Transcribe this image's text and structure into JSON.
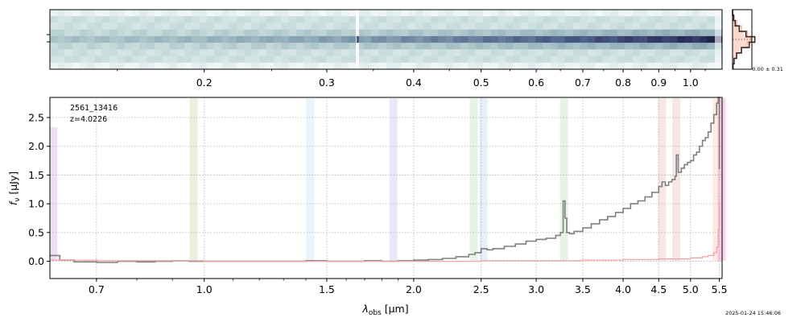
{
  "chart_data": [
    {
      "panel": "2d-spectrum",
      "type": "heatmap",
      "top_axis_ticks": [
        "0.2",
        "0.3",
        "0.4",
        "0.5",
        "0.6",
        "0.7",
        "0.8",
        "0.9",
        "1.0"
      ],
      "top_axis_tick_values": [
        0.2,
        0.3,
        0.4,
        0.5,
        0.6,
        0.7,
        0.8,
        0.9,
        1.0
      ],
      "top_axis_minor_values": [
        0.15,
        0.25,
        0.35,
        0.45,
        0.55,
        0.65,
        0.75,
        0.85,
        0.95,
        1.05
      ],
      "cmap": [
        "#ffffff",
        "#c7dcdc",
        "#8aa8b4",
        "#4a5a86",
        "#141038"
      ]
    },
    {
      "panel": "histogram",
      "type": "bar",
      "annotation": "-0.00 ± 0.31",
      "values": [
        0.0,
        0.05,
        0.12,
        0.3,
        0.6,
        1.0,
        0.75,
        0.4,
        0.18,
        0.07,
        0.02
      ],
      "gauss": [
        0.02,
        0.08,
        0.22,
        0.48,
        0.8,
        1.0,
        0.8,
        0.48,
        0.22,
        0.08,
        0.02
      ]
    },
    {
      "panel": "1d-spectrum",
      "type": "line",
      "label_id": "2561_13416",
      "label_z": "z=4.0226",
      "xlabel": "λobs [μm]",
      "xlabel_main": "λ",
      "xlabel_sub": "obs",
      "xlabel_unit": " [μm]",
      "ylabel": "fν [μJy]",
      "ylabel_main": "f",
      "ylabel_sub": "ν",
      "ylabel_unit": " [μJy]",
      "xlim": [
        0.6,
        5.55
      ],
      "ylim": [
        -0.3,
        2.85
      ],
      "x_ticks": [
        "0.7",
        "1.0",
        "1.5",
        "2.0",
        "2.5",
        "3.0",
        "3.5",
        "4.0",
        "4.5",
        "5.0",
        "5.5"
      ],
      "x_tick_values": [
        0.7,
        1.0,
        1.5,
        2.0,
        2.5,
        3.0,
        3.5,
        4.0,
        4.5,
        5.0,
        5.5
      ],
      "x_minor_values": [
        0.8,
        0.9,
        1.1,
        1.2,
        1.3,
        1.4,
        1.6,
        1.7,
        1.8,
        1.9
      ],
      "y_ticks": [
        "0.0",
        "0.5",
        "1.0",
        "1.5",
        "2.0",
        "2.5"
      ],
      "y_tick_values": [
        0.0,
        0.5,
        1.0,
        1.5,
        2.0,
        2.5
      ],
      "grid": true,
      "line_bands": [
        {
          "x": 0.607,
          "color": "#e8c8f0"
        },
        {
          "x": 0.965,
          "color": "#dde6c4"
        },
        {
          "x": 1.42,
          "color": "#d8ecf8"
        },
        {
          "x": 1.87,
          "color": "#d8d8f4"
        },
        {
          "x": 2.44,
          "color": "#d6ecd4"
        },
        {
          "x": 2.52,
          "color": "#d6e6f6"
        },
        {
          "x": 3.29,
          "color": "#d6ecd4"
        },
        {
          "x": 4.55,
          "color": "#f2d6d6"
        },
        {
          "x": 4.77,
          "color": "#f2d6d6"
        },
        {
          "x": 5.45,
          "color": "#fde0cc"
        },
        {
          "x": 5.54,
          "color": "#f4b8e0"
        }
      ],
      "series": [
        {
          "color": "#808080",
          "x": [
            0.6,
            0.62,
            0.65,
            0.7,
            0.75,
            0.8,
            0.85,
            0.9,
            0.95,
            1.0,
            1.1,
            1.2,
            1.3,
            1.4,
            1.5,
            1.6,
            1.7,
            1.8,
            1.9,
            2.0,
            2.1,
            2.2,
            2.3,
            2.4,
            2.45,
            2.5,
            2.55,
            2.6,
            2.7,
            2.8,
            2.9,
            3.0,
            3.1,
            3.2,
            3.25,
            3.28,
            3.3,
            3.32,
            3.35,
            3.4,
            3.5,
            3.6,
            3.7,
            3.8,
            3.9,
            4.0,
            4.1,
            4.2,
            4.3,
            4.4,
            4.5,
            4.55,
            4.6,
            4.65,
            4.7,
            4.75,
            4.77,
            4.8,
            4.85,
            4.9,
            4.95,
            5.0,
            5.05,
            5.1,
            5.15,
            5.2,
            5.25,
            5.3,
            5.35,
            5.4,
            5.45,
            5.48,
            5.5
          ],
          "y": [
            0.1,
            0.02,
            -0.01,
            -0.02,
            0.0,
            -0.01,
            0.0,
            0.01,
            0.0,
            0.0,
            0.0,
            0.0,
            0.0,
            0.01,
            0.0,
            0.0,
            0.01,
            0.0,
            0.01,
            0.02,
            0.03,
            0.05,
            0.08,
            0.12,
            0.15,
            0.22,
            0.2,
            0.22,
            0.26,
            0.3,
            0.35,
            0.38,
            0.4,
            0.45,
            0.5,
            1.05,
            0.75,
            0.5,
            0.48,
            0.52,
            0.58,
            0.65,
            0.72,
            0.78,
            0.85,
            0.92,
            1.0,
            1.05,
            1.12,
            1.2,
            1.3,
            1.38,
            1.32,
            1.38,
            1.42,
            1.48,
            1.85,
            1.55,
            1.62,
            1.68,
            1.72,
            1.75,
            1.85,
            1.9,
            2.0,
            2.1,
            2.15,
            2.25,
            2.4,
            2.55,
            2.75,
            2.85,
            1.6
          ]
        },
        {
          "color": "#f4a3a3",
          "x": [
            0.6,
            0.7,
            0.8,
            1.0,
            1.5,
            2.0,
            2.5,
            3.0,
            3.5,
            4.0,
            4.5,
            5.0,
            5.2,
            5.3,
            5.4,
            5.45,
            5.48,
            5.5
          ],
          "y": [
            0.02,
            0.01,
            0.01,
            0.0,
            0.0,
            0.0,
            0.01,
            0.01,
            0.02,
            0.03,
            0.04,
            0.06,
            0.08,
            0.1,
            0.15,
            0.25,
            0.55,
            1.05
          ]
        }
      ]
    }
  ],
  "timestamp": "2025-01-24 15:46:06"
}
